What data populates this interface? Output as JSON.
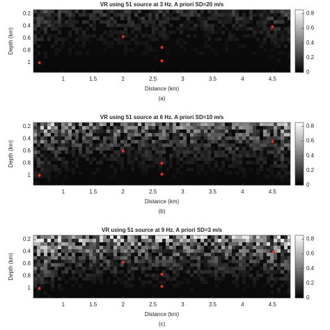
{
  "chart_data": [
    {
      "type": "heatmap",
      "title": "VR using 51 source at 3 Hz. A priori SD=20 m/s",
      "xlabel": "Distance (km)",
      "ylabel": "Depth (km)",
      "caption": "(a)",
      "xlim": [
        0.5,
        4.8
      ],
      "xticks": [
        1,
        1.5,
        2,
        2.5,
        3,
        3.5,
        4,
        4.5
      ],
      "ylim": [
        0.13,
        1.16
      ],
      "yticks": [
        0.2,
        0.4,
        0.6,
        0.8,
        1
      ],
      "y_inverted": true,
      "clim": [
        0,
        0.85
      ],
      "cticks": [
        0,
        0.2,
        0.4,
        0.6,
        0.8
      ],
      "series": [
        {
          "color": "#e8302a",
          "x": [
            0.6,
            2.0,
            2.65,
            2.65,
            4.5
          ],
          "y": [
            1.0,
            0.57,
            0.75,
            0.97,
            0.41
          ]
        }
      ]
    },
    {
      "type": "heatmap",
      "title": "VR using 51 source at 6 Hz. A priori SD=10 m/s",
      "xlabel": "Distance (km)",
      "ylabel": "Depth (km)",
      "caption": "(b)",
      "xlim": [
        0.5,
        4.8
      ],
      "xticks": [
        1,
        1.5,
        2,
        2.5,
        3,
        3.5,
        4,
        4.5
      ],
      "ylim": [
        0.13,
        1.16
      ],
      "yticks": [
        0.2,
        0.4,
        0.6,
        0.8,
        1
      ],
      "y_inverted": true,
      "clim": [
        0,
        0.85
      ],
      "cticks": [
        0,
        0.2,
        0.4,
        0.6,
        0.8
      ],
      "series": [
        {
          "color": "#e8302a",
          "x": [
            0.6,
            2.0,
            2.65,
            2.65,
            4.5
          ],
          "y": [
            1.0,
            0.6,
            0.8,
            0.98,
            0.44
          ]
        }
      ]
    },
    {
      "type": "heatmap",
      "title": "VR using 51 source at 9 Hz. A priori SD=3 m/s",
      "xlabel": "Distance (km)",
      "ylabel": "Depth (km)",
      "caption": "(c)",
      "xlim": [
        0.5,
        4.8
      ],
      "xticks": [
        1,
        1.5,
        2,
        2.5,
        3,
        3.5,
        4,
        4.5
      ],
      "ylim": [
        0.13,
        1.16
      ],
      "yticks": [
        0.2,
        0.4,
        0.6,
        0.8,
        1
      ],
      "y_inverted": true,
      "clim": [
        0,
        0.85
      ],
      "cticks": [
        0,
        0.2,
        0.4,
        0.6,
        0.8
      ],
      "series": [
        {
          "color": "#e8302a",
          "x": [
            0.6,
            2.0,
            2.65,
            2.65,
            4.52
          ],
          "y": [
            1.0,
            0.57,
            0.77,
            0.97,
            0.4
          ]
        }
      ]
    }
  ]
}
